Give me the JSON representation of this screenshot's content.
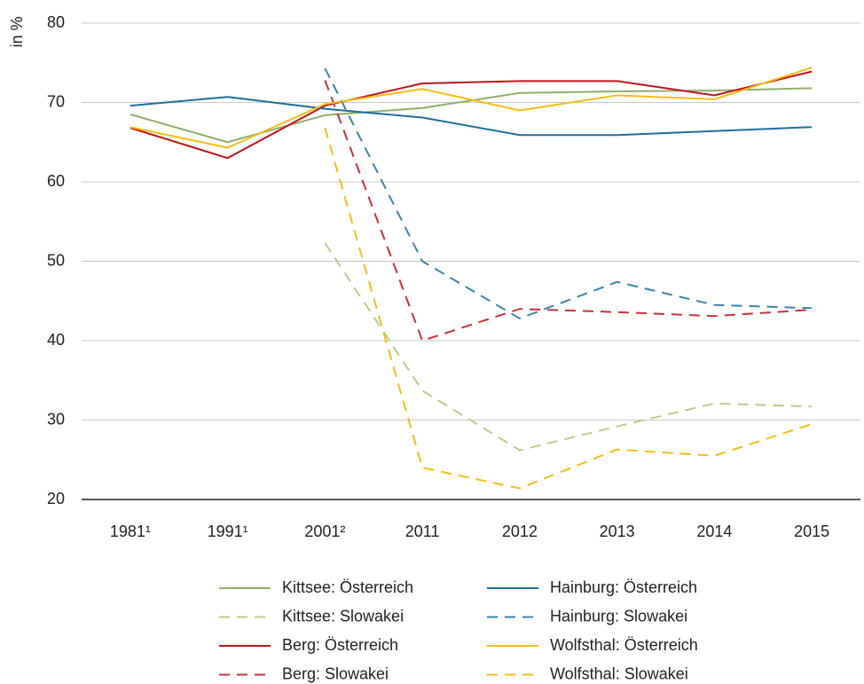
{
  "chart_data": {
    "type": "line",
    "y_label": "in %",
    "categories": [
      "1981¹",
      "1991¹",
      "2001²",
      "2011",
      "2012",
      "2013",
      "2014",
      "2015"
    ],
    "ylim": [
      20,
      80
    ],
    "yticks": [
      20,
      30,
      40,
      50,
      60,
      70,
      80
    ],
    "grid": true,
    "series": [
      {
        "name": "Kittsee: Österreich",
        "color": "#8fae6a",
        "style": "solid",
        "values": [
          68.5,
          65.0,
          68.4,
          69.3,
          71.2,
          71.4,
          71.5,
          71.8
        ]
      },
      {
        "name": "Kittsee: Slowakei",
        "color": "#b3cf8a",
        "style": "dashed",
        "values": [
          null,
          null,
          52.3,
          33.7,
          26.2,
          29.2,
          32.1,
          31.7
        ]
      },
      {
        "name": "Berg: Österreich",
        "color": "#c0141c",
        "style": "solid",
        "values": [
          66.8,
          63.0,
          69.6,
          72.4,
          72.7,
          72.7,
          70.9,
          73.9
        ]
      },
      {
        "name": "Berg: Slowakei",
        "color": "#c8303a",
        "style": "dashed",
        "values": [
          null,
          null,
          72.8,
          40.0,
          44.0,
          43.6,
          43.1,
          43.9
        ]
      },
      {
        "name": "Hainburg: Österreich",
        "color": "#1f6f9b",
        "style": "solid",
        "values": [
          69.6,
          70.7,
          69.2,
          68.1,
          65.9,
          65.9,
          66.4,
          66.9
        ]
      },
      {
        "name": "Hainburg: Slowakei",
        "color": "#3a85ad",
        "style": "dashed",
        "values": [
          null,
          null,
          74.3,
          50.0,
          42.8,
          47.4,
          44.5,
          44.1
        ]
      },
      {
        "name": "Wolfsthal: Österreich",
        "color": "#f5bd14",
        "style": "solid",
        "values": [
          66.9,
          64.3,
          69.8,
          71.7,
          69.0,
          70.9,
          70.4,
          74.4
        ]
      },
      {
        "name": "Wolfsthal: Slowakei",
        "color": "#f5bd14",
        "style": "dashed",
        "values": [
          null,
          null,
          66.8,
          24.0,
          21.4,
          26.3,
          25.5,
          29.5
        ]
      }
    ]
  }
}
